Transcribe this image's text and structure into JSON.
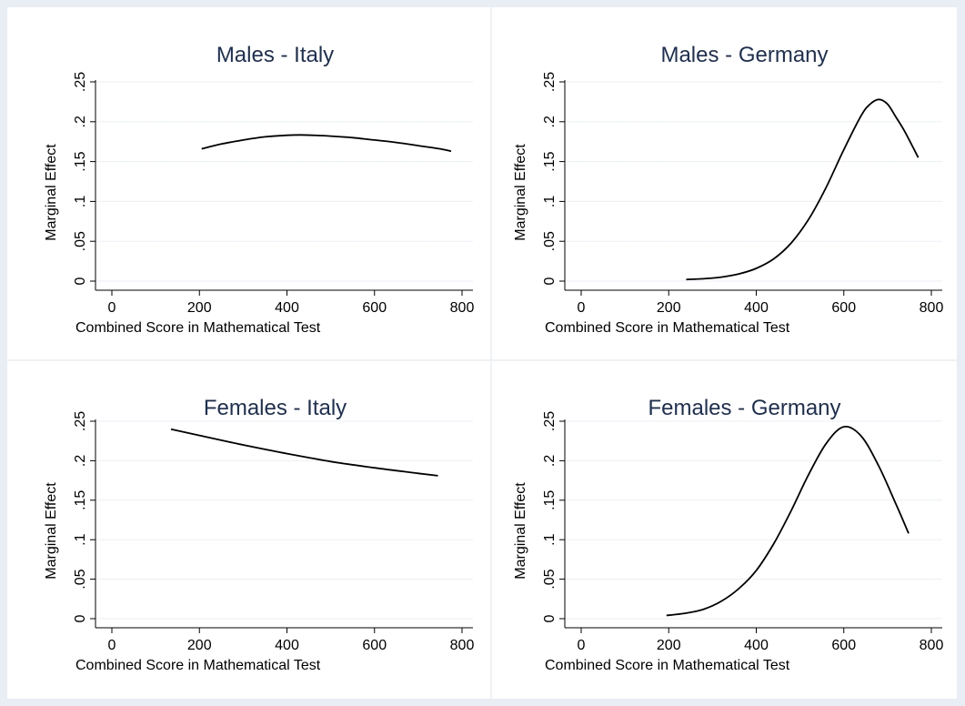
{
  "chart_data": [
    {
      "type": "line",
      "title": "Males - Italy",
      "xlabel": "Combined Score in Mathematical Test",
      "ylabel": "Marginal Effect",
      "xlim": [
        0,
        800
      ],
      "ylim": [
        0,
        0.25
      ],
      "xticks": [
        "0",
        "200",
        "400",
        "600",
        "800"
      ],
      "yticks": [
        "0",
        ".05",
        ".1",
        ".15",
        ".2",
        ".25"
      ],
      "grid": true,
      "series": [
        {
          "x": [
            205,
            250,
            300,
            350,
            400,
            430,
            460,
            500,
            550,
            600,
            650,
            700,
            750,
            775
          ],
          "values": [
            0.166,
            0.172,
            0.177,
            0.181,
            0.183,
            0.1835,
            0.183,
            0.182,
            0.18,
            0.177,
            0.174,
            0.17,
            0.166,
            0.163
          ]
        }
      ]
    },
    {
      "type": "line",
      "title": "Males - Germany",
      "xlabel": "Combined Score in Mathematical Test",
      "ylabel": "Marginal Effect",
      "xlim": [
        0,
        800
      ],
      "ylim": [
        0,
        0.25
      ],
      "xticks": [
        "0",
        "200",
        "400",
        "600",
        "800"
      ],
      "yticks": [
        "0",
        ".05",
        ".1",
        ".15",
        ".2",
        ".25"
      ],
      "grid": true,
      "series": [
        {
          "x": [
            240,
            280,
            320,
            360,
            400,
            440,
            480,
            520,
            560,
            600,
            640,
            660,
            680,
            700,
            720,
            740,
            770
          ],
          "values": [
            0.002,
            0.003,
            0.005,
            0.009,
            0.016,
            0.028,
            0.048,
            0.078,
            0.118,
            0.165,
            0.208,
            0.222,
            0.228,
            0.222,
            0.205,
            0.187,
            0.155
          ]
        }
      ]
    },
    {
      "type": "line",
      "title": "Females - Italy",
      "xlabel": "Combined Score in Mathematical Test",
      "ylabel": "Marginal Effect",
      "xlim": [
        0,
        800
      ],
      "ylim": [
        0,
        0.25
      ],
      "xticks": [
        "0",
        "200",
        "400",
        "600",
        "800"
      ],
      "yticks": [
        "0",
        ".05",
        ".1",
        ".15",
        ".2",
        ".25"
      ],
      "grid": true,
      "series": [
        {
          "x": [
            135,
            200,
            300,
            400,
            500,
            600,
            700,
            745
          ],
          "values": [
            0.24,
            0.232,
            0.22,
            0.209,
            0.199,
            0.191,
            0.184,
            0.181
          ]
        }
      ]
    },
    {
      "type": "line",
      "title": "Females - Germany",
      "xlabel": "Combined Score in Mathematical Test",
      "ylabel": "Marginal Effect",
      "xlim": [
        0,
        800
      ],
      "ylim": [
        0,
        0.25
      ],
      "xticks": [
        "0",
        "200",
        "400",
        "600",
        "800"
      ],
      "yticks": [
        "0",
        ".05",
        ".1",
        ".15",
        ".2",
        ".25"
      ],
      "grid": true,
      "series": [
        {
          "x": [
            195,
            240,
            280,
            320,
            360,
            400,
            440,
            480,
            520,
            560,
            600,
            640,
            680,
            720,
            748
          ],
          "values": [
            0.004,
            0.007,
            0.012,
            0.022,
            0.038,
            0.061,
            0.095,
            0.137,
            0.183,
            0.222,
            0.243,
            0.231,
            0.193,
            0.144,
            0.108
          ]
        }
      ]
    }
  ]
}
